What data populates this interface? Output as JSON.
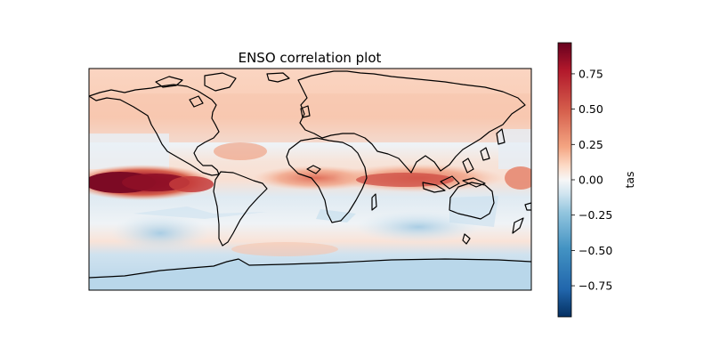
{
  "chart_data": {
    "type": "heatmap",
    "title": "ENSO correlation plot",
    "colorbar": {
      "label": "tas",
      "range": [
        -0.97,
        0.97
      ],
      "ticks": [
        0.75,
        0.5,
        0.25,
        0.0,
        -0.25,
        -0.5,
        -0.75
      ],
      "tick_labels": [
        "0.75",
        "0.50",
        "0.25",
        "0.00",
        "−0.25",
        "−0.50",
        "−0.75"
      ],
      "colormap": "RdBu_r"
    },
    "projection": "PlateCarree",
    "extent": {
      "lon": [
        -180,
        180
      ],
      "lat": [
        -90,
        90
      ]
    }
  },
  "colors": {
    "positive_max": "#67001f",
    "neutral": "#f7f7f7",
    "negative_max": "#053061",
    "coastline": "#000000"
  }
}
